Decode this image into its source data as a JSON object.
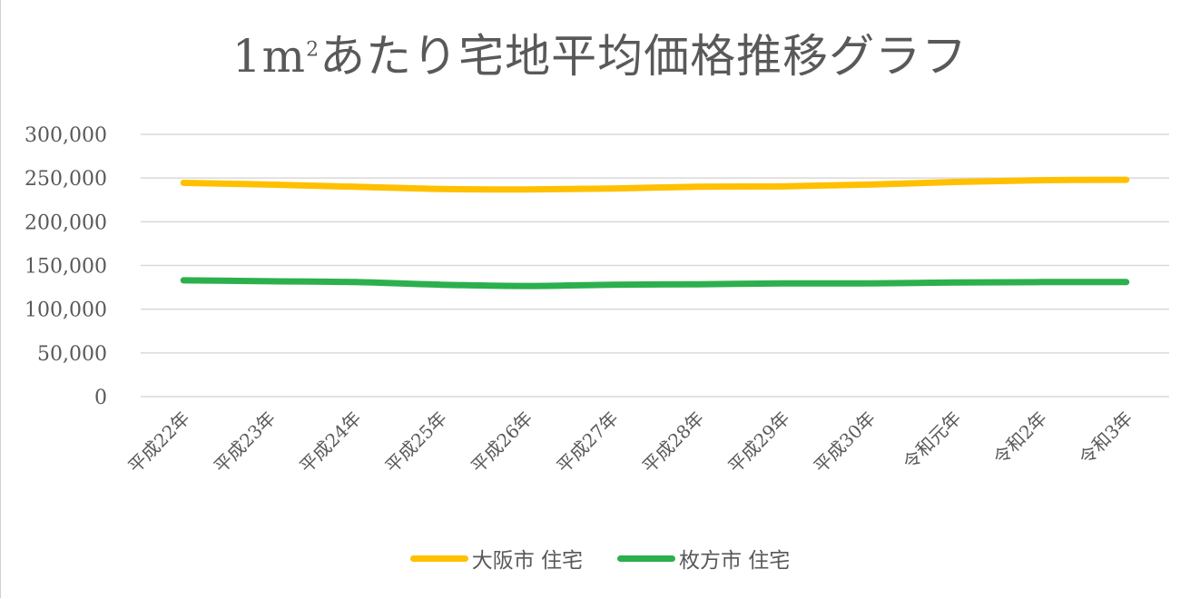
{
  "chart_data": {
    "type": "line",
    "title": "1㎡あたり宅地平均価格推移グラフ",
    "xlabel": "",
    "ylabel": "",
    "ylim": [
      0,
      300000
    ],
    "yticks": [
      "0",
      "50,000",
      "100,000",
      "150,000",
      "200,000",
      "250,000",
      "300,000"
    ],
    "grid": true,
    "legend_position": "bottom",
    "categories": [
      "平成22年",
      "平成23年",
      "平成24年",
      "平成25年",
      "平成26年",
      "平成27年",
      "平成28年",
      "平成29年",
      "平成30年",
      "令和元年",
      "令和2年",
      "令和3年"
    ],
    "series": [
      {
        "name": "大阪市 住宅",
        "color": "#FFC000",
        "values": [
          244500,
          242500,
          240000,
          237500,
          237000,
          238000,
          240000,
          240500,
          242500,
          245500,
          247500,
          248000
        ]
      },
      {
        "name": "枚方市 住宅",
        "color": "#2CB04D",
        "values": [
          133000,
          132000,
          131000,
          128000,
          126500,
          128000,
          128500,
          129500,
          129500,
          130500,
          131000,
          131000
        ]
      }
    ]
  },
  "title": {
    "main": "1m",
    "sup": "2",
    "rest": "あたり宅地平均価格推移グラフ"
  },
  "legend": [
    {
      "label": "大阪市 住宅",
      "color": "#FFC000"
    },
    {
      "label": "枚方市 住宅",
      "color": "#2CB04D"
    }
  ]
}
